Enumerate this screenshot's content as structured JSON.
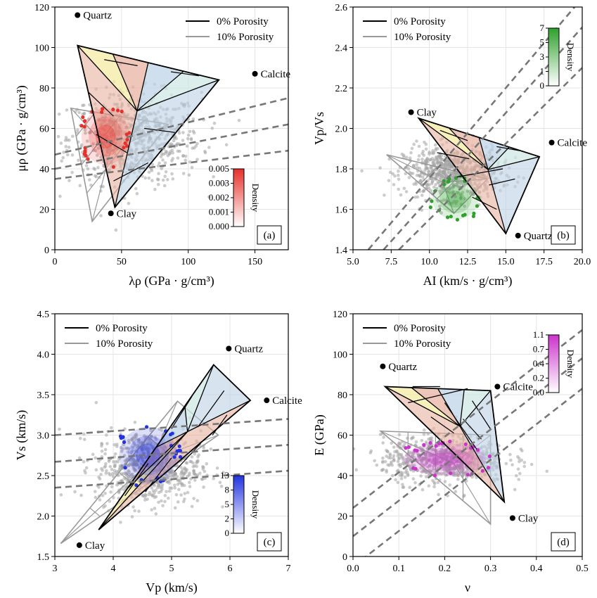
{
  "figure": {
    "legend_black": "0% Porosity",
    "legend_gray": "10% Porosity"
  },
  "chart_data": [
    {
      "type": "scatter",
      "panel_label": "(a)",
      "xlabel": "λρ (GPa · g/cm³)",
      "ylabel": "μρ (GPa · g/cm³)",
      "xlim": [
        0,
        175
      ],
      "ylim": [
        0,
        120
      ],
      "xticks": [
        0,
        50,
        100,
        150
      ],
      "yticks": [
        0,
        20,
        40,
        60,
        80,
        100,
        120
      ],
      "grid": true,
      "legend": {
        "position": "top-right",
        "entries": [
          "0% Porosity",
          "10% Porosity"
        ]
      },
      "minerals": [
        {
          "name": "Quartz",
          "x": 17,
          "y": 116
        },
        {
          "name": "Calcite",
          "x": 150,
          "y": 87
        },
        {
          "name": "Clay",
          "x": 42,
          "y": 18
        }
      ],
      "colorbar": {
        "label": "Density",
        "ticks": [
          "0.000",
          "0.001",
          "0.002",
          "0.003",
          "0.005"
        ],
        "color": "#e8302a",
        "position": "bottom-right"
      },
      "dashed_lines": [
        {
          "x": [
            0,
            175
          ],
          "y": [
            47,
            75
          ]
        },
        {
          "x": [
            0,
            175
          ],
          "y": [
            40,
            62
          ]
        },
        {
          "x": [
            0,
            175
          ],
          "y": [
            35,
            49
          ]
        }
      ],
      "template_0": {
        "corners": [
          [
            17,
            101
          ],
          [
            123,
            84
          ],
          [
            45,
            21
          ]
        ],
        "internal": [
          [
            37,
            94
          ],
          [
            62,
            91
          ],
          [
            87,
            88
          ],
          [
            108,
            86
          ],
          [
            25,
            78
          ],
          [
            44,
            66
          ],
          [
            67,
            60
          ],
          [
            90,
            58
          ],
          [
            31,
            57
          ],
          [
            54,
            48
          ],
          [
            70,
            43
          ],
          [
            44,
            34
          ]
        ]
      },
      "template_10": {
        "corners": [
          [
            12,
            70
          ],
          [
            85,
            62
          ],
          [
            28,
            14
          ]
        ]
      },
      "cloud": {
        "color": "#e8302a",
        "cx": 38,
        "cy": 56,
        "rx": 18,
        "ry": 14
      },
      "gray_cloud": {
        "cx": 60,
        "cy": 55,
        "rx": 55,
        "ry": 25
      }
    },
    {
      "type": "scatter",
      "panel_label": "(b)",
      "xlabel": "AI (km/s · g/cm³)",
      "ylabel": "Vp/Vs",
      "xlim": [
        5.0,
        20.0
      ],
      "ylim": [
        1.4,
        2.6
      ],
      "xticks": [
        5.0,
        7.5,
        10.0,
        12.5,
        15.0,
        17.5,
        20.0
      ],
      "yticks": [
        1.4,
        1.6,
        1.8,
        2.0,
        2.2,
        2.4,
        2.6
      ],
      "grid": true,
      "legend": {
        "position": "top-left",
        "entries": [
          "0% Porosity",
          "10% Porosity"
        ]
      },
      "minerals": [
        {
          "name": "Clay",
          "x": 8.8,
          "y": 2.08
        },
        {
          "name": "Calcite",
          "x": 18.0,
          "y": 1.93
        },
        {
          "name": "Quartz",
          "x": 15.8,
          "y": 1.47
        }
      ],
      "colorbar": {
        "label": "Density",
        "ticks": [
          "0",
          "1",
          "3",
          "5",
          "7"
        ],
        "color": "#2ea02c",
        "position": "top-right"
      },
      "dashed_lines": [
        {
          "x": [
            6.0,
            19.5
          ],
          "y": [
            1.4,
            2.6
          ]
        },
        {
          "x": [
            7.0,
            20.0
          ],
          "y": [
            1.4,
            2.5
          ]
        },
        {
          "x": [
            8.0,
            20.0
          ],
          "y": [
            1.4,
            2.3
          ]
        }
      ],
      "template_0": {
        "corners": [
          [
            9.3,
            2.05
          ],
          [
            17.2,
            1.86
          ],
          [
            15.0,
            1.48
          ]
        ],
        "internal": [
          [
            10.7,
            1.99
          ],
          [
            12.5,
            1.94
          ],
          [
            14.4,
            1.91
          ],
          [
            15.9,
            1.89
          ],
          [
            10.5,
            1.88
          ],
          [
            12.6,
            1.85
          ],
          [
            14.8,
            1.8
          ],
          [
            11.8,
            1.76
          ],
          [
            13.9,
            1.72
          ],
          [
            15.6,
            1.75
          ],
          [
            12.8,
            1.66
          ],
          [
            14.4,
            1.6
          ]
        ]
      },
      "template_10": {
        "corners": [
          [
            7.2,
            1.87
          ],
          [
            13.8,
            1.75
          ],
          [
            11.6,
            1.58
          ]
        ]
      },
      "cloud": {
        "color": "#2ea02c",
        "cx": 11.7,
        "cy": 1.65,
        "rx": 1.5,
        "ry": 0.1
      },
      "gray_cloud": {
        "cx": 11.5,
        "cy": 1.78,
        "rx": 3.5,
        "ry": 0.14
      }
    },
    {
      "type": "scatter",
      "panel_label": "(c)",
      "xlabel": "Vp (km/s)",
      "ylabel": "Vs (km/s)",
      "xlim": [
        3,
        7
      ],
      "ylim": [
        1.5,
        4.5
      ],
      "xticks": [
        3,
        4,
        5,
        6,
        7
      ],
      "yticks": [
        1.5,
        2.0,
        2.5,
        3.0,
        3.5,
        4.0,
        4.5
      ],
      "grid": true,
      "legend": {
        "position": "top-left",
        "entries": [
          "0% Porosity",
          "10% Porosity"
        ]
      },
      "minerals": [
        {
          "name": "Quartz",
          "x": 5.98,
          "y": 4.07
        },
        {
          "name": "Calcite",
          "x": 6.63,
          "y": 3.43
        },
        {
          "name": "Clay",
          "x": 3.42,
          "y": 1.64
        }
      ],
      "colorbar": {
        "label": "Density",
        "ticks": [
          "0",
          "2",
          "5",
          "8",
          "13"
        ],
        "color": "#2333e0",
        "position": "bottom-right"
      },
      "dashed_lines": [
        {
          "x": [
            3,
            7
          ],
          "y": [
            3.0,
            3.2
          ]
        },
        {
          "x": [
            3,
            7
          ],
          "y": [
            2.67,
            2.88
          ]
        },
        {
          "x": [
            3,
            7
          ],
          "y": [
            2.35,
            2.56
          ]
        }
      ],
      "template_0": {
        "corners": [
          [
            3.75,
            1.83
          ],
          [
            5.72,
            3.87
          ],
          [
            6.35,
            3.43
          ]
        ],
        "internal": [
          [
            4.2,
            2.25
          ],
          [
            4.6,
            2.65
          ],
          [
            5.0,
            3.08
          ],
          [
            5.35,
            3.48
          ],
          [
            4.55,
            2.3
          ],
          [
            5.0,
            2.72
          ],
          [
            5.45,
            3.1
          ],
          [
            5.9,
            3.55
          ],
          [
            5.05,
            2.55
          ],
          [
            5.5,
            2.9
          ],
          [
            5.95,
            3.25
          ],
          [
            5.7,
            3.0
          ]
        ]
      },
      "template_10": {
        "corners": [
          [
            3.1,
            1.66
          ],
          [
            5.1,
            3.42
          ],
          [
            5.8,
            3.0
          ]
        ]
      },
      "cloud": {
        "color": "#2333e0",
        "cx": 4.6,
        "cy": 2.75,
        "rx": 0.5,
        "ry": 0.35
      },
      "gray_cloud": {
        "cx": 4.6,
        "cy": 2.6,
        "rx": 1.0,
        "ry": 0.5
      }
    },
    {
      "type": "scatter",
      "panel_label": "(d)",
      "xlabel": "ν",
      "ylabel": "E (GPa)",
      "xlim": [
        0.0,
        0.5
      ],
      "ylim": [
        0,
        120
      ],
      "xticks": [
        0.0,
        0.1,
        0.2,
        0.3,
        0.4,
        0.5
      ],
      "yticks": [
        0,
        20,
        40,
        60,
        80,
        100,
        120
      ],
      "grid": true,
      "legend": {
        "position": "top-left",
        "entries": [
          "0% Porosity",
          "10% Porosity"
        ]
      },
      "minerals": [
        {
          "name": "Quartz",
          "x": 0.065,
          "y": 94
        },
        {
          "name": "Calcite",
          "x": 0.315,
          "y": 84
        },
        {
          "name": "Clay",
          "x": 0.348,
          "y": 19
        }
      ],
      "colorbar": {
        "label": "Density",
        "ticks": [
          "0.0",
          "0.2",
          "0.4",
          "0.7",
          "1.1"
        ],
        "color": "#cc33cc",
        "position": "top-right"
      },
      "dashed_lines": [
        {
          "x": [
            0.0,
            0.5
          ],
          "y": [
            24,
            112
          ]
        },
        {
          "x": [
            0.0,
            0.5
          ],
          "y": [
            10,
            98
          ]
        },
        {
          "x": [
            0.0,
            0.5
          ],
          "y": [
            -5,
            83
          ]
        }
      ],
      "template_0": {
        "corners": [
          [
            0.07,
            84
          ],
          [
            0.3,
            82
          ],
          [
            0.33,
            27
          ]
        ],
        "internal": [
          [
            0.13,
            84
          ],
          [
            0.19,
            84
          ],
          [
            0.25,
            83
          ],
          [
            0.12,
            76
          ],
          [
            0.17,
            69
          ],
          [
            0.22,
            61
          ],
          [
            0.27,
            53
          ],
          [
            0.2,
            76
          ],
          [
            0.24,
            68
          ],
          [
            0.28,
            58
          ],
          [
            0.26,
            77
          ],
          [
            0.3,
            63
          ]
        ]
      },
      "template_10": {
        "corners": [
          [
            0.06,
            62
          ],
          [
            0.3,
            60
          ],
          [
            0.3,
            16
          ]
        ]
      },
      "cloud": {
        "color": "#cc33cc",
        "cx": 0.2,
        "cy": 48,
        "rx": 0.09,
        "ry": 8
      },
      "gray_cloud": {
        "cx": 0.2,
        "cy": 48,
        "rx": 0.15,
        "ry": 13
      }
    }
  ]
}
